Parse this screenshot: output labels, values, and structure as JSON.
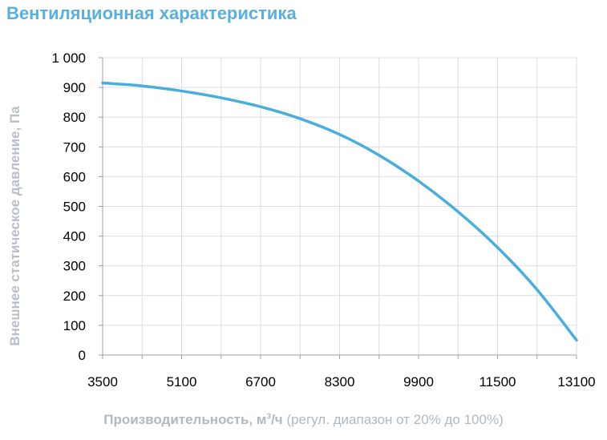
{
  "chart_data": {
    "type": "line",
    "title": "Вентиляционная характеристика",
    "xlabel": {
      "bold": "Производительность",
      "unit_prefix": ", м",
      "unit_sup": "3",
      "unit_suffix": "/ч",
      "note": " (регул. диапазон от 20% до 100%)"
    },
    "ylabel": "Внешнее статическое давление, Па",
    "xlim": [
      3500,
      13100
    ],
    "ylim": [
      0,
      1000
    ],
    "xticks": [
      "3500",
      "5100",
      "6700",
      "8300",
      "9900",
      "11500",
      "13100"
    ],
    "yticks": [
      "0",
      "100",
      "200",
      "300",
      "400",
      "500",
      "600",
      "700",
      "800",
      "900",
      "1 000"
    ],
    "grid": true,
    "series": [
      {
        "color": "#4aaedc",
        "x": [
          3500,
          4300,
          5100,
          5900,
          6700,
          7500,
          8300,
          9100,
          9900,
          10700,
          11500,
          12300,
          13100
        ],
        "y": [
          915,
          905,
          888,
          865,
          835,
          795,
          742,
          672,
          585,
          482,
          362,
          220,
          50
        ]
      }
    ]
  }
}
